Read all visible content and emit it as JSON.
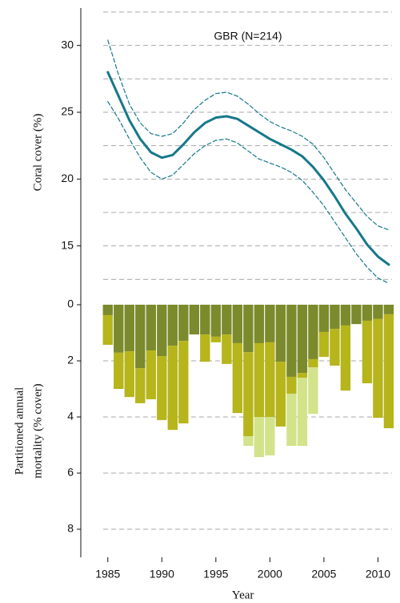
{
  "chart_data": [
    {
      "type": "line",
      "annotation": "GBR (N=214)",
      "y_label": "Coral cover (%)",
      "ylim": [
        11.2,
        32.8
      ],
      "yticks": [
        15,
        20,
        25,
        30
      ],
      "ygrid": [
        12.5,
        15,
        17.5,
        20,
        22.5,
        25,
        27.5,
        30,
        32.5
      ],
      "xlim": [
        1982.5,
        2011.3
      ],
      "x": [
        1985,
        1986,
        1987,
        1988,
        1989,
        1990,
        1991,
        1992,
        1993,
        1994,
        1995,
        1996,
        1997,
        1998,
        1999,
        2000,
        2001,
        2002,
        2003,
        2004,
        2005,
        2006,
        2007,
        2008,
        2009,
        2010,
        2011
      ],
      "series": [
        {
          "color": "#16788a",
          "style": "solid",
          "values": [
            28.0,
            26.2,
            24.4,
            23.0,
            22.0,
            21.6,
            21.8,
            22.6,
            23.5,
            24.2,
            24.6,
            24.7,
            24.5,
            24.0,
            23.5,
            23.0,
            22.6,
            22.2,
            21.7,
            20.9,
            19.9,
            18.7,
            17.4,
            16.3,
            15.1,
            14.2,
            13.6
          ]
        },
        {
          "color": "#16788a",
          "style": "dashed",
          "values": [
            30.4,
            27.8,
            25.6,
            24.2,
            23.4,
            23.2,
            23.4,
            24.2,
            25.2,
            25.9,
            26.4,
            26.5,
            26.2,
            25.6,
            24.9,
            24.3,
            23.9,
            23.6,
            23.2,
            22.6,
            21.6,
            20.4,
            19.2,
            18.2,
            17.2,
            16.5,
            16.2
          ]
        },
        {
          "color": "#16788a",
          "style": "dashed",
          "values": [
            25.8,
            24.5,
            23.0,
            21.6,
            20.5,
            20.0,
            20.3,
            21.1,
            21.9,
            22.5,
            22.9,
            23.0,
            22.7,
            22.1,
            21.5,
            21.2,
            20.9,
            20.5,
            19.9,
            19.0,
            18.0,
            16.8,
            15.6,
            14.4,
            13.4,
            12.6,
            12.2
          ]
        }
      ]
    },
    {
      "type": "bar",
      "stacked": true,
      "inverted": true,
      "y_label": [
        "Partitioned annual",
        "mortality (% cover)"
      ],
      "x_label": "Year",
      "ylim": [
        0,
        9
      ],
      "yticks": [
        0,
        2,
        4,
        6,
        8
      ],
      "xlim": [
        1982.5,
        2011.3
      ],
      "xticks": [
        1985,
        1990,
        1995,
        2000,
        2005,
        2010
      ],
      "x": [
        1985,
        1986,
        1987,
        1988,
        1989,
        1990,
        1991,
        1992,
        1993,
        1994,
        1995,
        1996,
        1997,
        1998,
        1999,
        2000,
        2001,
        2002,
        2003,
        2004,
        2005,
        2006,
        2007,
        2008,
        2009,
        2010,
        2011
      ],
      "series": [
        {
          "color": "#7b8a2c",
          "values": [
            0.37,
            1.71,
            1.66,
            2.26,
            1.63,
            1.83,
            1.46,
            1.29,
            1.06,
            1.06,
            1.14,
            1.06,
            1.37,
            1.69,
            1.37,
            1.34,
            2.03,
            2.57,
            2.43,
            1.94,
            0.97,
            0.86,
            0.74,
            0.69,
            0.57,
            0.51,
            0.34
          ]
        },
        {
          "color": "#b6b51c",
          "values": [
            1.06,
            1.29,
            1.63,
            1.25,
            1.74,
            2.28,
            3.0,
            2.94,
            0,
            0.97,
            0.2,
            1.05,
            2.49,
            3.0,
            2.63,
            2.66,
            2.31,
            0.6,
            0.17,
            0.29,
            0.89,
            1.31,
            2.32,
            0,
            2.23,
            3.52,
            4.06
          ]
        },
        {
          "color": "#d3e38c",
          "values": [
            0,
            0,
            0,
            0,
            0,
            0,
            0,
            0,
            0,
            0,
            0,
            0,
            0,
            0.34,
            1.43,
            1.37,
            0,
            1.86,
            2.43,
            1.66,
            0,
            0,
            0,
            0,
            0,
            0,
            0
          ]
        }
      ]
    }
  ]
}
